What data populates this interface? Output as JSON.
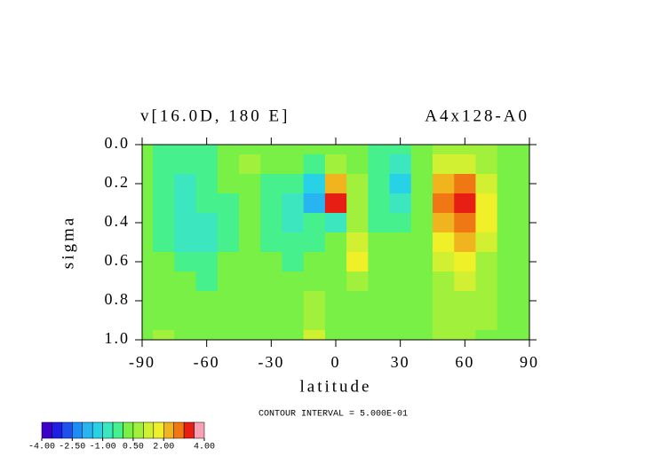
{
  "chart_data": {
    "type": "contour",
    "title": "v[16.0D, 180 E]",
    "subtitle": "A4x128-A0",
    "xlabel": "latitude",
    "ylabel": "sigma",
    "annotation": "CONTOUR INTERVAL = 5.000E-01",
    "xlim": [
      -90,
      90
    ],
    "xticks": [
      -90,
      -60,
      -30,
      0,
      30,
      60,
      90
    ],
    "ylim": [
      0,
      1
    ],
    "y_inverted": true,
    "yticks": [
      {
        "value": 0,
        "label": "0.0"
      },
      0.2,
      0.4,
      0.6,
      0.8,
      {
        "value": 1,
        "label": "1.0"
      }
    ],
    "x": [
      -90,
      -80,
      -70,
      -60,
      -50,
      -40,
      -30,
      -20,
      -10,
      0,
      10,
      20,
      30,
      40,
      50,
      60,
      70,
      80,
      90
    ],
    "y": [
      0,
      0.1,
      0.2,
      0.3,
      0.4,
      0.5,
      0.6,
      0.7,
      0.8,
      0.9,
      1
    ],
    "z": [
      [
        0.2,
        -0.2,
        -0.2,
        -0.2,
        0.2,
        0.2,
        0.3,
        0.3,
        0.2,
        0.3,
        0.2,
        -0.3,
        -0.3,
        0.3,
        0.8,
        0.8,
        0.6,
        0.3,
        0.2
      ],
      [
        0.2,
        -0.3,
        -0.4,
        -0.3,
        0.2,
        0.7,
        0.3,
        0.2,
        -0.2,
        0.5,
        0.3,
        -0.5,
        -0.6,
        0.3,
        1.3,
        1.3,
        0.8,
        0.3,
        0.2
      ],
      [
        0.2,
        -0.4,
        -0.6,
        -0.3,
        0.3,
        0.3,
        -0.2,
        -0.4,
        -1.2,
        2.2,
        0.5,
        -0.3,
        -1.5,
        0.3,
        2.2,
        2.5,
        1.2,
        0.3,
        0.2
      ],
      [
        0.2,
        -0.5,
        -0.7,
        -0.5,
        -0.2,
        0.2,
        -0.3,
        -0.6,
        -1.8,
        3.0,
        0.8,
        -0.3,
        -0.8,
        0.2,
        2.8,
        3.3,
        1.8,
        0.3,
        0.2
      ],
      [
        0.2,
        -0.5,
        -0.8,
        -0.7,
        -0.3,
        0.2,
        -0.3,
        -0.8,
        -0.5,
        -0.8,
        0.5,
        -0.2,
        -0.3,
        0.3,
        2.3,
        2.8,
        1.5,
        0.3,
        0.2
      ],
      [
        0.3,
        -0.3,
        -0.6,
        -0.6,
        -0.2,
        0.2,
        -0.2,
        -0.3,
        -0.2,
        0.3,
        1.2,
        0.3,
        0.2,
        0.3,
        1.8,
        2.2,
        1.2,
        0.3,
        0.2
      ],
      [
        0.4,
        0.2,
        -0.3,
        -0.3,
        0.2,
        0.3,
        0.2,
        -0.2,
        0.2,
        0.4,
        1.5,
        0.3,
        0.3,
        0.3,
        1.3,
        1.6,
        0.8,
        0.3,
        0.2
      ],
      [
        0.3,
        0.2,
        0.2,
        -0.2,
        0.2,
        0.2,
        0.2,
        0.2,
        0.3,
        0.3,
        0.8,
        0.2,
        0.3,
        0.3,
        0.9,
        1.1,
        0.7,
        0.3,
        0.2
      ],
      [
        0.3,
        0.2,
        0.2,
        0.2,
        0.2,
        0.2,
        0.2,
        0.3,
        0.6,
        0.3,
        0.3,
        0.2,
        0.3,
        0.3,
        0.8,
        0.8,
        0.6,
        0.3,
        0.2
      ],
      [
        0.3,
        0.2,
        0.2,
        0.2,
        0.2,
        0.2,
        0.2,
        0.3,
        0.7,
        0.3,
        0.2,
        0.2,
        0.3,
        0.3,
        0.7,
        0.7,
        0.5,
        0.3,
        0.2
      ],
      [
        0.2,
        0.6,
        0.2,
        0.2,
        0.2,
        0.2,
        0.2,
        0.2,
        1.0,
        0.3,
        0.2,
        0.2,
        0.2,
        0.2,
        0.6,
        0.6,
        0.4,
        0.2,
        0.2
      ]
    ],
    "levels": [
      -4,
      -3.5,
      -3,
      -2.5,
      -2,
      -1.5,
      -1,
      -0.5,
      0,
      0.5,
      1,
      1.5,
      2,
      2.5,
      3,
      3.5,
      4
    ],
    "colors": [
      "#3c00c8",
      "#1e1ee6",
      "#1e50f0",
      "#1e8cf5",
      "#28b4f0",
      "#28d2e6",
      "#3ce6be",
      "#46f08c",
      "#78f046",
      "#a0f03c",
      "#d2f032",
      "#f0f028",
      "#f0b41e",
      "#f07814",
      "#e61e14",
      "#f8a0b4"
    ],
    "colorbar_ticks": [
      {
        "value": -4,
        "label": "-4.00"
      },
      {
        "value": -2.5,
        "label": "-2.50"
      },
      {
        "value": -1,
        "label": "-1.00"
      },
      {
        "value": 0.5,
        "label": "0.50"
      },
      {
        "value": 2,
        "label": "2.00"
      },
      {
        "value": 4,
        "label": "4.00"
      }
    ]
  }
}
